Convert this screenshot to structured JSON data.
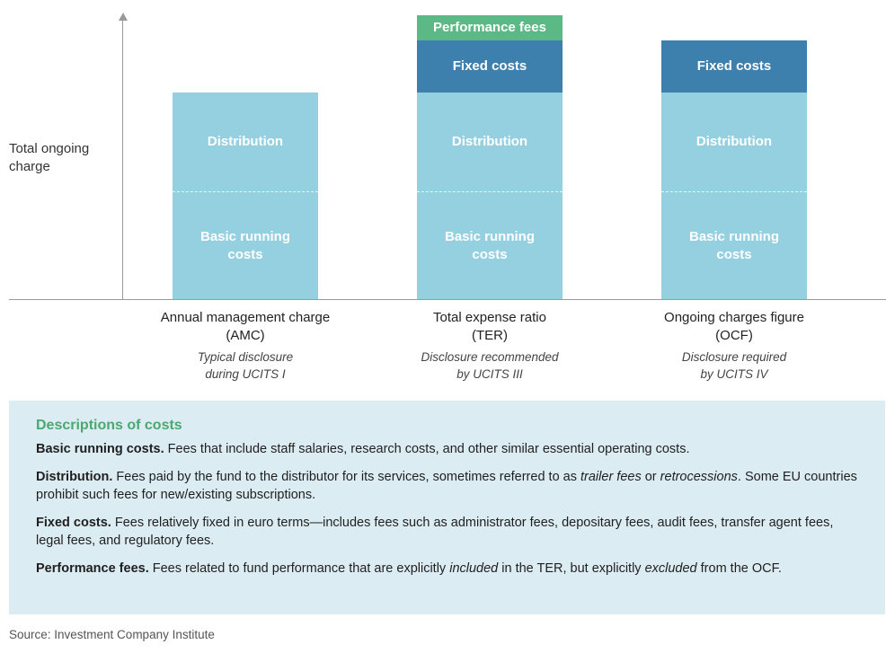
{
  "y_axis_label": "Total ongoing charge",
  "colors": {
    "basic_running_costs": "#95d0e1",
    "distribution": "#95d0e1",
    "fixed_costs": "#3e80ad",
    "performance_fees": "#5cb884",
    "description_background": "#dcecf3",
    "description_title": "#4aa870"
  },
  "columns": [
    {
      "title_line1": "Annual management charge",
      "title_line2": "(AMC)",
      "note_line1": "Typical disclosure",
      "note_line2": "during UCITS I",
      "segments": {
        "basic": "Basic running costs",
        "distribution": "Distribution"
      }
    },
    {
      "title_line1": "Total expense ratio",
      "title_line2": "(TER)",
      "note_line1": "Disclosure recommended",
      "note_line2": "by UCITS III",
      "segments": {
        "basic": "Basic running costs",
        "distribution": "Distribution",
        "fixed": "Fixed costs",
        "performance": "Performance fees"
      }
    },
    {
      "title_line1": "Ongoing charges figure",
      "title_line2": "(OCF)",
      "note_line1": "Disclosure required",
      "note_line2": "by UCITS IV",
      "segments": {
        "basic": "Basic running costs",
        "distribution": "Distribution",
        "fixed": "Fixed costs"
      }
    }
  ],
  "descriptions": {
    "title": "Descriptions of costs",
    "items": [
      {
        "term": "Basic running costs.",
        "text": " Fees that include staff salaries, research costs, and other similar essential operating costs."
      },
      {
        "term": "Distribution.",
        "text_a": " Fees paid by the fund to the distributor for its services, sometimes referred to as ",
        "em_a": "trailer fees",
        "text_b": " or ",
        "em_b": "retrocessions",
        "text_c": ". Some EU countries prohibit such fees for new/existing subscriptions."
      },
      {
        "term": "Fixed costs.",
        "text": " Fees relatively fixed in euro terms—includes fees such as administrator fees, depositary fees, audit fees, transfer agent fees, legal fees, and regulatory fees."
      },
      {
        "term": "Performance fees.",
        "text_a": " Fees related to fund performance that are explicitly ",
        "em_a": "included",
        "text_b": " in the TER, but explicitly ",
        "em_b": "excluded",
        "text_c": " from the OCF."
      }
    ]
  },
  "source": "Source: Investment Company Institute"
}
